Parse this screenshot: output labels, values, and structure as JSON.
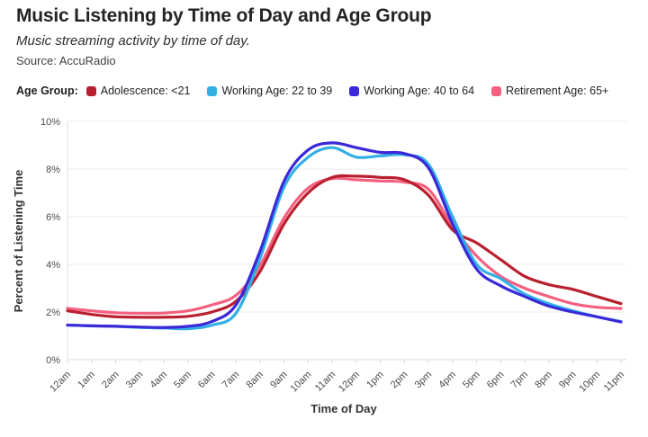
{
  "header": {
    "title": "Music Listening by Time of Day and Age Group",
    "subtitle": "Music streaming activity by time of day.",
    "source": "Source: AccuRadio"
  },
  "legend": {
    "title": "Age Group:"
  },
  "chart_data": {
    "type": "line",
    "title": "Music Listening by Time of Day and Age Group",
    "subtitle": "Music streaming activity by time of day.",
    "source": "Source: AccuRadio",
    "xlabel": "Time of Day",
    "ylabel": "Percent of Listening Time",
    "ylim": [
      0,
      10
    ],
    "grid": true,
    "legend_position": "top",
    "x": [
      "12am",
      "1am",
      "2am",
      "3am",
      "4am",
      "5am",
      "6am",
      "7am",
      "8am",
      "9am",
      "10am",
      "11am",
      "12pm",
      "1pm",
      "2pm",
      "3pm",
      "4pm",
      "5pm",
      "6pm",
      "7pm",
      "8pm",
      "9pm",
      "10pm",
      "11pm"
    ],
    "yticks": [
      {
        "value": 0,
        "label": "0%"
      },
      {
        "value": 2,
        "label": "2%"
      },
      {
        "value": 4,
        "label": "4%"
      },
      {
        "value": 6,
        "label": "6%"
      },
      {
        "value": 8,
        "label": "8%"
      },
      {
        "value": 10,
        "label": "10%"
      }
    ],
    "series": [
      {
        "name": "Adolescence: <21",
        "color": "#B9202F",
        "values": [
          2.05,
          1.9,
          1.8,
          1.78,
          1.78,
          1.82,
          2.0,
          2.45,
          3.7,
          5.7,
          7.0,
          7.65,
          7.7,
          7.65,
          7.55,
          6.9,
          5.45,
          4.9,
          4.2,
          3.5,
          3.15,
          2.95,
          2.65,
          2.35
        ]
      },
      {
        "name": "Working Age: 22 to 39",
        "color": "#32AFE5",
        "values": [
          1.45,
          1.42,
          1.4,
          1.35,
          1.33,
          1.3,
          1.45,
          1.95,
          4.25,
          7.25,
          8.5,
          8.9,
          8.5,
          8.55,
          8.6,
          8.2,
          6.0,
          4.0,
          3.4,
          2.75,
          2.35,
          2.05,
          1.8,
          1.6
        ]
      },
      {
        "name": "Working Age: 40 to 64",
        "color": "#3B28D8",
        "values": [
          1.45,
          1.42,
          1.4,
          1.37,
          1.35,
          1.4,
          1.6,
          2.3,
          4.55,
          7.5,
          8.8,
          9.1,
          8.9,
          8.7,
          8.65,
          8.05,
          5.7,
          3.8,
          3.1,
          2.65,
          2.25,
          2.0,
          1.8,
          1.58
        ]
      },
      {
        "name": "Retirement Age: 65+",
        "color": "#F4607F",
        "values": [
          2.15,
          2.05,
          1.97,
          1.95,
          1.96,
          2.05,
          2.3,
          2.7,
          3.95,
          5.95,
          7.2,
          7.6,
          7.55,
          7.5,
          7.45,
          7.15,
          5.6,
          4.35,
          3.5,
          3.0,
          2.65,
          2.35,
          2.2,
          2.15
        ]
      }
    ]
  }
}
